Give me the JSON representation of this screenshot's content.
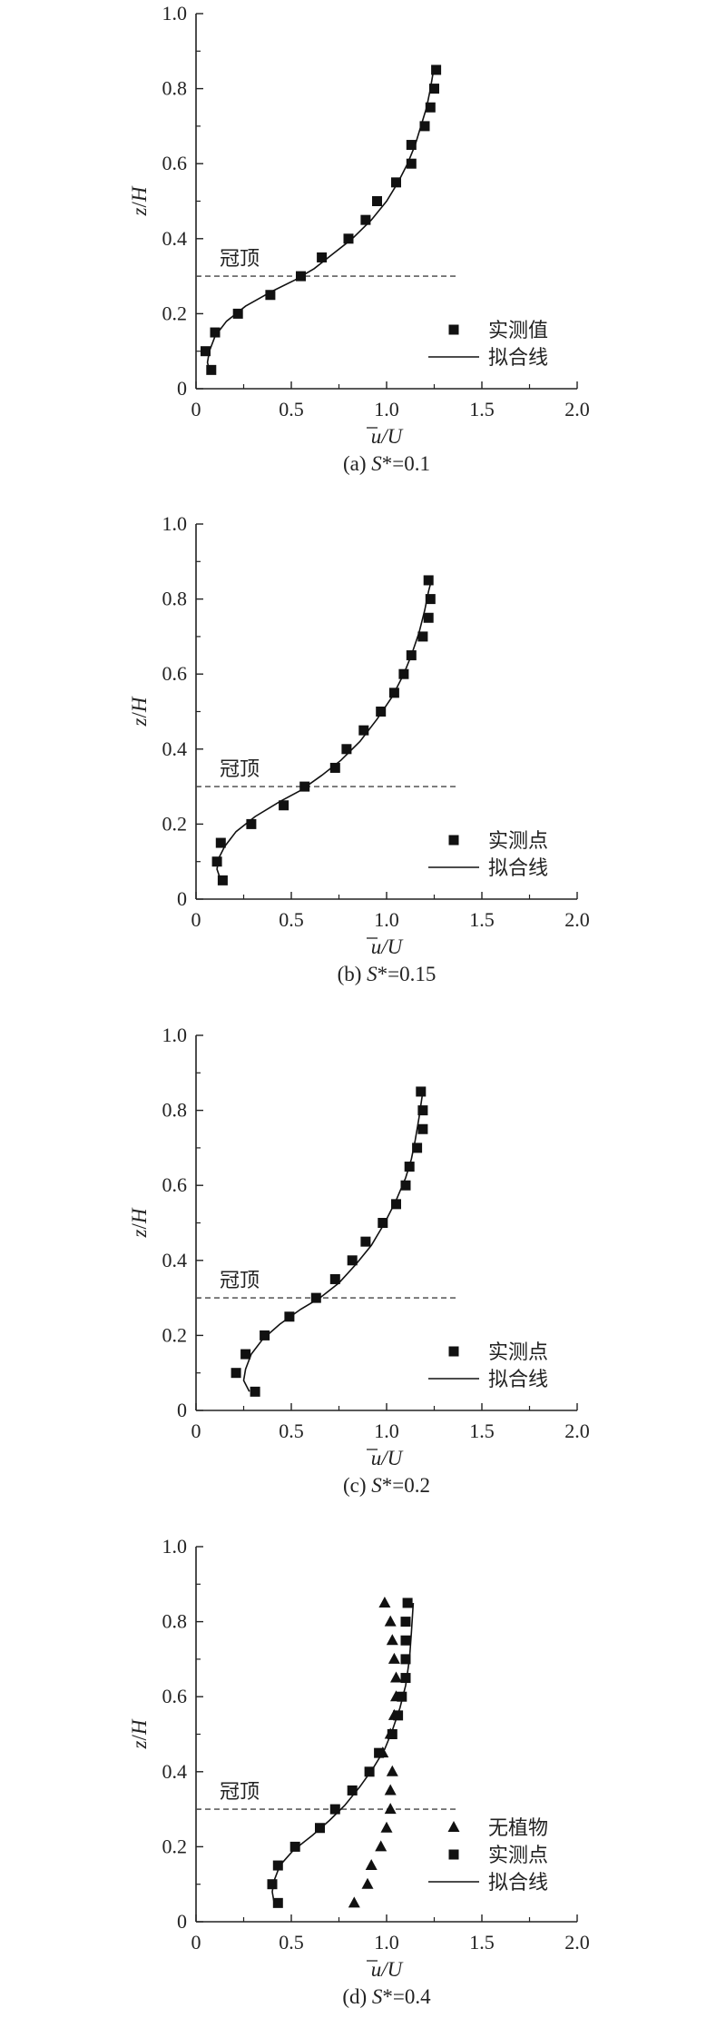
{
  "chart_data": [
    {
      "type": "scatter",
      "panel_label": "(a)",
      "caption_var": "S",
      "caption_rest": "*=0.1",
      "xlabel_var": "u",
      "xlabel_rest": "/U",
      "ylabel": "z/H",
      "xlim": [
        0,
        2.0
      ],
      "ylim": [
        0,
        1.0
      ],
      "x_ticks": [
        "0",
        "0.5",
        "1.0",
        "1.5",
        "2.0"
      ],
      "y_ticks": [
        "0",
        "0.2",
        "0.4",
        "0.6",
        "0.8",
        "1.0"
      ],
      "canopy_label": "冠顶",
      "canopy_z": 0.3,
      "legend": {
        "markers_label": "实测值",
        "line_label": "拟合线"
      },
      "series": [
        {
          "marker": "square",
          "points": [
            [
              0.08,
              0.05
            ],
            [
              0.05,
              0.1
            ],
            [
              0.1,
              0.15
            ],
            [
              0.22,
              0.2
            ],
            [
              0.39,
              0.25
            ],
            [
              0.55,
              0.3
            ],
            [
              0.66,
              0.35
            ],
            [
              0.8,
              0.4
            ],
            [
              0.89,
              0.45
            ],
            [
              0.95,
              0.5
            ],
            [
              1.05,
              0.55
            ],
            [
              1.13,
              0.6
            ],
            [
              1.13,
              0.65
            ],
            [
              1.2,
              0.7
            ],
            [
              1.23,
              0.75
            ],
            [
              1.25,
              0.8
            ],
            [
              1.26,
              0.85
            ]
          ]
        }
      ],
      "fit_line": [
        [
          0.07,
          0.05
        ],
        [
          0.06,
          0.07
        ],
        [
          0.07,
          0.1
        ],
        [
          0.1,
          0.14
        ],
        [
          0.16,
          0.18
        ],
        [
          0.26,
          0.22
        ],
        [
          0.4,
          0.26
        ],
        [
          0.52,
          0.29
        ],
        [
          0.62,
          0.32
        ],
        [
          0.72,
          0.36
        ],
        [
          0.82,
          0.4
        ],
        [
          0.92,
          0.45
        ],
        [
          1.0,
          0.5
        ],
        [
          1.06,
          0.55
        ],
        [
          1.11,
          0.6
        ],
        [
          1.15,
          0.65
        ],
        [
          1.18,
          0.7
        ],
        [
          1.21,
          0.75
        ],
        [
          1.23,
          0.8
        ],
        [
          1.25,
          0.86
        ]
      ]
    },
    {
      "type": "scatter",
      "panel_label": "(b)",
      "caption_var": "S",
      "caption_rest": "*=0.15",
      "xlabel_var": "u",
      "xlabel_rest": "/U",
      "ylabel": "z/H",
      "xlim": [
        0,
        2.0
      ],
      "ylim": [
        0,
        1.0
      ],
      "x_ticks": [
        "0",
        "0.5",
        "1.0",
        "1.5",
        "2.0"
      ],
      "y_ticks": [
        "0",
        "0.2",
        "0.4",
        "0.6",
        "0.8",
        "1.0"
      ],
      "canopy_label": "冠顶",
      "canopy_z": 0.3,
      "legend": {
        "markers_label": "实测点",
        "line_label": "拟合线"
      },
      "series": [
        {
          "marker": "square",
          "points": [
            [
              0.14,
              0.05
            ],
            [
              0.11,
              0.1
            ],
            [
              0.13,
              0.15
            ],
            [
              0.29,
              0.2
            ],
            [
              0.46,
              0.25
            ],
            [
              0.57,
              0.3
            ],
            [
              0.73,
              0.35
            ],
            [
              0.79,
              0.4
            ],
            [
              0.88,
              0.45
            ],
            [
              0.97,
              0.5
            ],
            [
              1.04,
              0.55
            ],
            [
              1.09,
              0.6
            ],
            [
              1.13,
              0.65
            ],
            [
              1.19,
              0.7
            ],
            [
              1.22,
              0.75
            ],
            [
              1.23,
              0.8
            ],
            [
              1.22,
              0.85
            ]
          ]
        }
      ],
      "fit_line": [
        [
          0.13,
          0.05
        ],
        [
          0.11,
          0.08
        ],
        [
          0.12,
          0.11
        ],
        [
          0.15,
          0.14
        ],
        [
          0.21,
          0.18
        ],
        [
          0.31,
          0.22
        ],
        [
          0.44,
          0.26
        ],
        [
          0.55,
          0.29
        ],
        [
          0.66,
          0.33
        ],
        [
          0.76,
          0.37
        ],
        [
          0.86,
          0.42
        ],
        [
          0.95,
          0.48
        ],
        [
          1.03,
          0.54
        ],
        [
          1.09,
          0.6
        ],
        [
          1.13,
          0.65
        ],
        [
          1.17,
          0.71
        ],
        [
          1.2,
          0.77
        ],
        [
          1.22,
          0.82
        ],
        [
          1.24,
          0.86
        ]
      ]
    },
    {
      "type": "scatter",
      "panel_label": "(c)",
      "caption_var": "S",
      "caption_rest": "*=0.2",
      "xlabel_var": "u",
      "xlabel_rest": "/U",
      "ylabel": "z/H",
      "xlim": [
        0,
        2.0
      ],
      "ylim": [
        0,
        1.0
      ],
      "x_ticks": [
        "0",
        "0.5",
        "1.0",
        "1.5",
        "2.0"
      ],
      "y_ticks": [
        "0",
        "0.2",
        "0.4",
        "0.6",
        "0.8",
        "1.0"
      ],
      "canopy_label": "冠顶",
      "canopy_z": 0.3,
      "legend": {
        "markers_label": "实测点",
        "line_label": "拟合线"
      },
      "series": [
        {
          "marker": "square",
          "points": [
            [
              0.31,
              0.05
            ],
            [
              0.21,
              0.1
            ],
            [
              0.26,
              0.15
            ],
            [
              0.36,
              0.2
            ],
            [
              0.49,
              0.25
            ],
            [
              0.63,
              0.3
            ],
            [
              0.73,
              0.35
            ],
            [
              0.82,
              0.4
            ],
            [
              0.89,
              0.45
            ],
            [
              0.98,
              0.5
            ],
            [
              1.05,
              0.55
            ],
            [
              1.1,
              0.6
            ],
            [
              1.12,
              0.65
            ],
            [
              1.16,
              0.7
            ],
            [
              1.19,
              0.75
            ],
            [
              1.19,
              0.8
            ],
            [
              1.18,
              0.85
            ]
          ]
        }
      ],
      "fit_line": [
        [
          0.28,
          0.05
        ],
        [
          0.25,
          0.08
        ],
        [
          0.26,
          0.11
        ],
        [
          0.29,
          0.15
        ],
        [
          0.35,
          0.19
        ],
        [
          0.44,
          0.23
        ],
        [
          0.55,
          0.27
        ],
        [
          0.65,
          0.3
        ],
        [
          0.75,
          0.34
        ],
        [
          0.84,
          0.39
        ],
        [
          0.92,
          0.44
        ],
        [
          0.99,
          0.5
        ],
        [
          1.05,
          0.56
        ],
        [
          1.1,
          0.62
        ],
        [
          1.13,
          0.67
        ],
        [
          1.15,
          0.72
        ],
        [
          1.17,
          0.78
        ],
        [
          1.19,
          0.85
        ]
      ]
    },
    {
      "type": "scatter",
      "panel_label": "(d)",
      "caption_var": "S",
      "caption_rest": "*=0.4",
      "xlabel_var": "u",
      "xlabel_rest": "/U",
      "ylabel": "z/H",
      "xlim": [
        0,
        2.0
      ],
      "ylim": [
        0,
        1.0
      ],
      "x_ticks": [
        "0",
        "0.5",
        "1.0",
        "1.5",
        "2.0"
      ],
      "y_ticks": [
        "0",
        "0.2",
        "0.4",
        "0.6",
        "0.8",
        "1.0"
      ],
      "canopy_label": "冠顶",
      "canopy_z": 0.3,
      "legend": {
        "triangles_label": "无植物",
        "markers_label": "实测点",
        "line_label": "拟合线"
      },
      "series": [
        {
          "marker": "triangle",
          "points": [
            [
              0.83,
              0.05
            ],
            [
              0.9,
              0.1
            ],
            [
              0.92,
              0.15
            ],
            [
              0.97,
              0.2
            ],
            [
              1.0,
              0.25
            ],
            [
              1.02,
              0.3
            ],
            [
              1.02,
              0.35
            ],
            [
              1.03,
              0.4
            ],
            [
              0.98,
              0.45
            ],
            [
              1.02,
              0.5
            ],
            [
              1.04,
              0.55
            ],
            [
              1.05,
              0.6
            ],
            [
              1.05,
              0.65
            ],
            [
              1.04,
              0.7
            ],
            [
              1.03,
              0.75
            ],
            [
              1.02,
              0.8
            ],
            [
              0.99,
              0.85
            ]
          ]
        },
        {
          "marker": "square",
          "points": [
            [
              0.43,
              0.05
            ],
            [
              0.4,
              0.1
            ],
            [
              0.43,
              0.15
            ],
            [
              0.52,
              0.2
            ],
            [
              0.65,
              0.25
            ],
            [
              0.73,
              0.3
            ],
            [
              0.82,
              0.35
            ],
            [
              0.91,
              0.4
            ],
            [
              0.96,
              0.45
            ],
            [
              1.03,
              0.5
            ],
            [
              1.06,
              0.55
            ],
            [
              1.08,
              0.6
            ],
            [
              1.1,
              0.65
            ],
            [
              1.1,
              0.7
            ],
            [
              1.1,
              0.75
            ],
            [
              1.1,
              0.8
            ],
            [
              1.11,
              0.85
            ]
          ]
        }
      ],
      "fit_line": [
        [
          0.41,
          0.05
        ],
        [
          0.4,
          0.08
        ],
        [
          0.41,
          0.11
        ],
        [
          0.44,
          0.15
        ],
        [
          0.51,
          0.19
        ],
        [
          0.61,
          0.23
        ],
        [
          0.7,
          0.27
        ],
        [
          0.78,
          0.31
        ],
        [
          0.86,
          0.36
        ],
        [
          0.93,
          0.41
        ],
        [
          0.99,
          0.46
        ],
        [
          1.03,
          0.51
        ],
        [
          1.07,
          0.57
        ],
        [
          1.1,
          0.63
        ],
        [
          1.12,
          0.7
        ],
        [
          1.13,
          0.77
        ],
        [
          1.14,
          0.85
        ]
      ]
    }
  ]
}
